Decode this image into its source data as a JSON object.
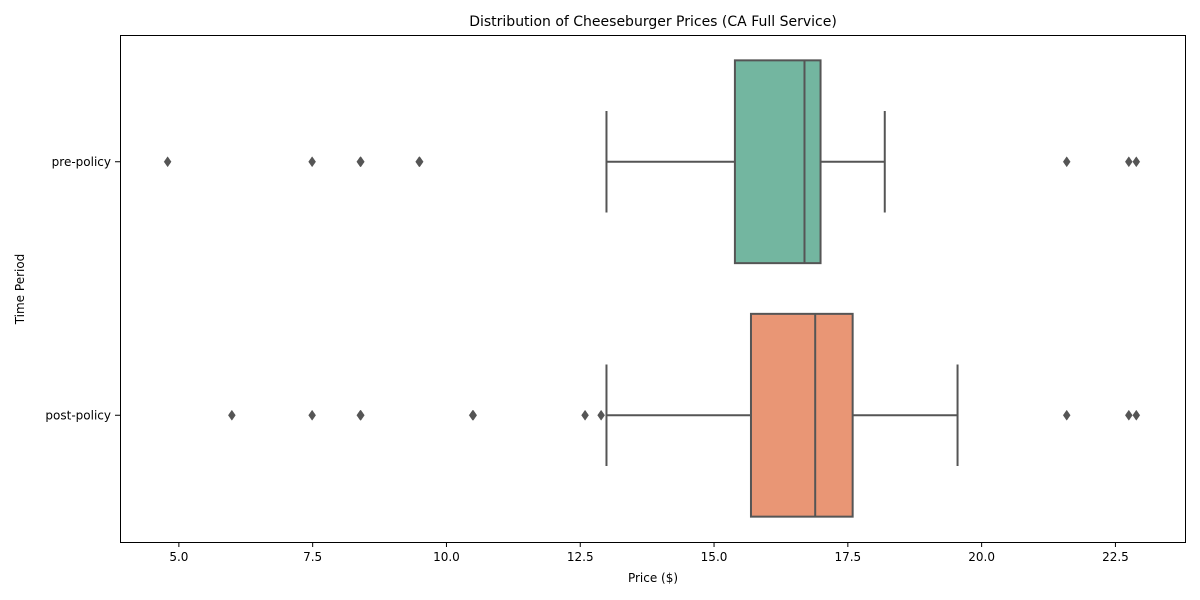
{
  "chart_data": {
    "type": "boxplot",
    "orientation": "horizontal",
    "title": "Distribution of Cheeseburger Prices (CA Full Service)",
    "xlabel": "Price ($)",
    "ylabel": "Time Period",
    "xlim": [
      3.9,
      23.8
    ],
    "xticks": [
      5.0,
      7.5,
      10.0,
      12.5,
      15.0,
      17.5,
      20.0,
      22.5
    ],
    "xtick_labels": [
      "5.0",
      "7.5",
      "10.0",
      "12.5",
      "15.0",
      "17.5",
      "20.0",
      "22.5"
    ],
    "grid": false,
    "categories": [
      "pre-policy",
      "post-policy"
    ],
    "boxes": [
      {
        "category": "pre-policy",
        "color": "#73b6a0",
        "whisker_low": 12.99,
        "q1": 15.39,
        "median": 16.69,
        "q3": 16.99,
        "whisker_high": 18.19,
        "outliers": [
          4.79,
          7.49,
          8.39,
          8.4,
          9.49,
          9.5,
          21.59,
          22.75,
          22.89
        ]
      },
      {
        "category": "post-policy",
        "color": "#e99675",
        "whisker_low": 12.99,
        "q1": 15.69,
        "median": 16.89,
        "q3": 17.59,
        "whisker_high": 19.55,
        "outliers": [
          5.99,
          7.49,
          8.39,
          8.4,
          10.49,
          10.5,
          12.59,
          12.89,
          21.59,
          22.75,
          22.89
        ]
      }
    ],
    "line_color": "#555555",
    "frame_color": "#000000"
  }
}
